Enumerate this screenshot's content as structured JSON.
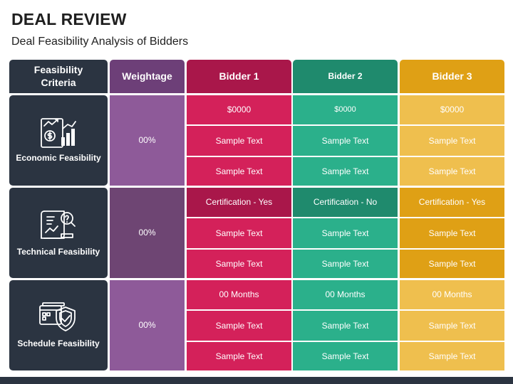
{
  "title": "DEAL REVIEW",
  "subtitle": "Deal Feasibility Analysis of Bidders",
  "headers": {
    "criteria": "Feasibility Criteria",
    "weightage": "Weightage",
    "bidder1": "Bidder 1",
    "bidder2": "Bidder 2",
    "bidder3": "Bidder 3"
  },
  "colors": {
    "dark": "#2b3441",
    "purple_header": "#6d3f78",
    "purple_light": "#8e5a99",
    "purple_mid": "#6e4573",
    "bidder1": "#d4215a",
    "bidder1_header": "#a9174a",
    "bidder2": "#2bb08b",
    "bidder2_header": "#1f8a6d",
    "bidder3": "#efbf4e",
    "bidder3_header": "#dfa015"
  },
  "groups": [
    {
      "label": "Economic Feasibility",
      "icon": "growth-chart-money-icon",
      "weight": "00%",
      "rows": [
        {
          "b1": "$0000",
          "b2": "$0000",
          "b3": "$0000"
        },
        {
          "b1": "Sample Text",
          "b2": "Sample Text",
          "b3": "Sample Text"
        },
        {
          "b1": "Sample Text",
          "b2": "Sample Text",
          "b3": "Sample Text"
        }
      ]
    },
    {
      "label": "Technical Feasibility",
      "icon": "document-magnifier-icon",
      "weight": "00%",
      "rows": [
        {
          "b1": "Certification - Yes",
          "b2": "Certification - No",
          "b3": "Certification - Yes"
        },
        {
          "b1": "Sample Text",
          "b2": "Sample Text",
          "b3": "Sample Text"
        },
        {
          "b1": "Sample Text",
          "b2": "Sample Text",
          "b3": "Sample Text"
        }
      ]
    },
    {
      "label": "Schedule Feasibility",
      "icon": "calendar-shield-check-icon",
      "weight": "00%",
      "rows": [
        {
          "b1": "00 Months",
          "b2": "00 Months",
          "b3": "00 Months"
        },
        {
          "b1": "Sample Text",
          "b2": "Sample Text",
          "b3": "Sample Text"
        },
        {
          "b1": "Sample Text",
          "b2": "Sample Text",
          "b3": "Sample Text"
        }
      ]
    }
  ]
}
